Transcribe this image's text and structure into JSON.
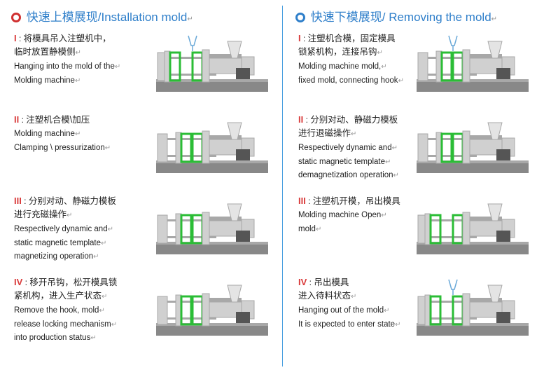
{
  "colors": {
    "heading": "#2f7fca",
    "roman": "#d93a3a",
    "text": "#222222",
    "divider": "#4aa0e0",
    "bullet_red": "#d03030",
    "bullet_blue": "#2f7fca",
    "machine_body": "#d0d0d0",
    "machine_body_dark": "#a8a8a8",
    "machine_base": "#888888",
    "mold_green": "#2bbd36",
    "bg": "#ffffff"
  },
  "left": {
    "title_zh": "快速上模展现",
    "title_en": "Installation mold",
    "steps": [
      {
        "roman": "I",
        "zh1": "将模具吊入注塑机中，",
        "zh2": "临时放置静模侧",
        "en1": "Hanging into the mold of the",
        "en2": "Molding machine",
        "mold_open": true,
        "hook": true
      },
      {
        "roman": "II",
        "zh1": "注塑机合模\\加压",
        "zh2": "",
        "en1": "Molding machine",
        "en2": "Clamping \\ pressurization",
        "mold_open": false,
        "hook": false
      },
      {
        "roman": "III",
        "zh1": "分别对动、静磁力模板",
        "zh2": "进行充磁操作",
        "en1": "Respectively dynamic and",
        "en2": "static magnetic template",
        "en3": "magnetizing operation",
        "mold_open": false,
        "hook": false
      },
      {
        "roman": "IV",
        "zh1": "移开吊钩，松开模具锁",
        "zh2": "紧机构，进入生产状态",
        "en1": "Remove the hook,  mold",
        "en2": "release locking mechanism",
        "en3": "into production status",
        "mold_open": false,
        "hook": false
      }
    ]
  },
  "right": {
    "title_zh": "快速下模展现",
    "title_en": "Removing the mold",
    "steps": [
      {
        "roman": "I",
        "zh1": "注塑机合模，固定模具",
        "zh2": "锁紧机构，连接吊钩",
        "en1": "Molding machine mold,",
        "en2": "fixed mold, connecting hook",
        "mold_open": false,
        "hook": true
      },
      {
        "roman": "II",
        "zh1": "分别对动、静磁力模板",
        "zh2": "进行退磁操作",
        "en1": "Respectively dynamic and",
        "en2": "static magnetic template",
        "en3": "demagnetization operation",
        "mold_open": false,
        "hook": false
      },
      {
        "roman": "III",
        "zh1": "注塑机开模，吊出模具",
        "zh2": "",
        "en1": "Molding machine Open",
        "en2": "mold",
        "mold_open": true,
        "hook": false
      },
      {
        "roman": "IV",
        "zh1": "吊出模具",
        "zh2": "进入待料状态",
        "en1": "Hanging out of the mold",
        "en2": "It is expected to enter state",
        "mold_open": true,
        "hook": true
      }
    ]
  }
}
